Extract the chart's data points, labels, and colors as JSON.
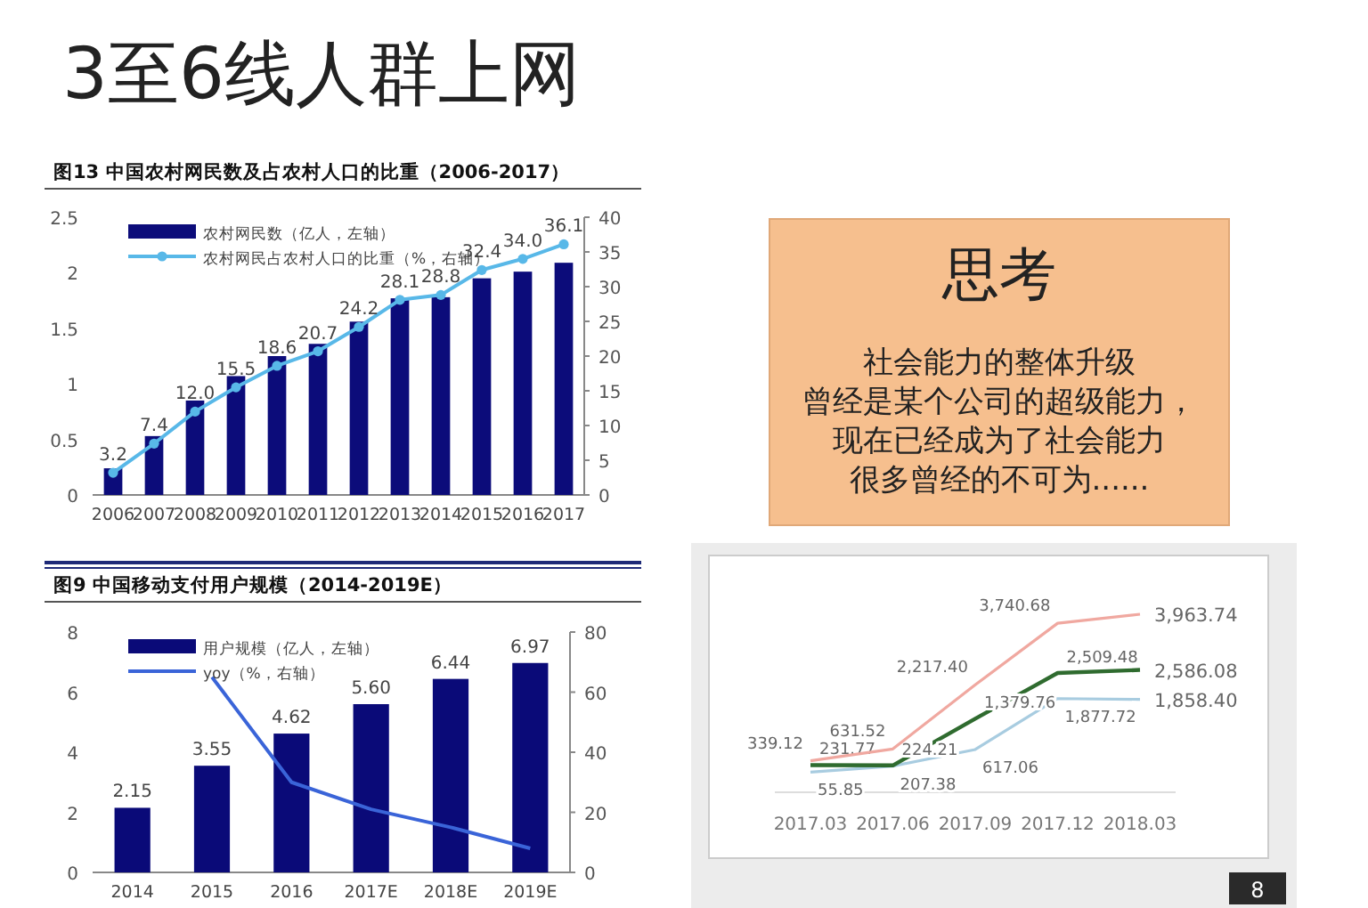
{
  "chart_data": [
    {
      "type": "other",
      "title": "3至6线人群上网"
    },
    {
      "type": "bar",
      "title": "图13 中国农村网民数及占农村人口的比重（2006-2017）",
      "categories": [
        "2006",
        "2007",
        "2008",
        "2009",
        "2010",
        "2011",
        "2012",
        "2013",
        "2014",
        "2015",
        "2016",
        "2017"
      ],
      "series": [
        {
          "name": "农村网民数（亿人，左轴）",
          "color": "#0c0c7a",
          "values": [
            0.24,
            0.53,
            0.85,
            1.07,
            1.25,
            1.36,
            1.56,
            1.77,
            1.78,
            1.95,
            2.01,
            2.09
          ]
        },
        {
          "type": "line",
          "axis": "y2",
          "marker": "circle",
          "name": "农村网民占农村人口的比重（%，右轴）",
          "color": "#58b8e8",
          "values": [
            3.2,
            7.4,
            12.0,
            15.5,
            18.6,
            20.7,
            24.2,
            28.1,
            28.8,
            32.4,
            34.0,
            36.1
          ],
          "value_labels": [
            "3.2",
            "7.4",
            "12.0",
            "15.5",
            "18.6",
            "20.7",
            "24.2",
            "28.1",
            "28.8",
            "32.4",
            "34.0",
            "36.1"
          ]
        }
      ],
      "ylim": [
        0,
        2.5
      ],
      "yticks": [
        0,
        0.5,
        1,
        1.5,
        2,
        2.5
      ],
      "y2lim": [
        0,
        40
      ],
      "y2ticks": [
        0,
        5,
        10,
        15,
        20,
        25,
        30,
        35,
        40
      ],
      "legend": "top"
    },
    {
      "type": "other",
      "title": "思考",
      "annotations": [
        "社会能力的整体升级",
        "曾经是某个公司的超级能力，",
        "现在已经成为了社会能力",
        "很多曾经的不可为......"
      ]
    },
    {
      "type": "bar",
      "title": "图9  中国移动支付用户规模（2014-2019E）",
      "categories": [
        "2014",
        "2015",
        "2016",
        "2017E",
        "2018E",
        "2019E"
      ],
      "series": [
        {
          "name": "用户规模（亿人，左轴）",
          "color": "#0a0a78",
          "values": [
            2.15,
            3.55,
            4.62,
            5.6,
            6.44,
            6.97
          ],
          "value_labels": [
            "2.15",
            "3.55",
            "4.62",
            "5.60",
            "6.44",
            "6.97"
          ]
        },
        {
          "type": "line",
          "axis": "y2",
          "name": "yoy（%，右轴）",
          "color": "#3a64d8",
          "values": [
            null,
            65,
            30,
            21,
            15,
            8
          ]
        }
      ],
      "ylim": [
        0,
        8
      ],
      "yticks": [
        0,
        2,
        4,
        6,
        8
      ],
      "y2lim": [
        0,
        80
      ],
      "y2ticks": [
        0,
        20,
        40,
        60,
        80
      ],
      "legend": "top"
    },
    {
      "type": "line",
      "categories": [
        "2017.03",
        "2017.06",
        "2017.09",
        "2017.12",
        "2018.03"
      ],
      "series": [
        {
          "color": "#a8cce0",
          "values": [
            55.85,
            207.38,
            617.06,
            1877.72,
            1858.4
          ],
          "value_labels": [
            "55.85",
            "207.38",
            "617.06",
            "1,877.72",
            "1,858.40"
          ]
        },
        {
          "color": "#2f6b2f",
          "values": [
            231.77,
            224.21,
            1379.76,
            2509.48,
            2586.08
          ],
          "value_labels": [
            "231.77",
            "224.21",
            "1,379.76",
            "2,509.48",
            "2,586.08"
          ]
        },
        {
          "color": "#f0a8a0",
          "values": [
            339.12,
            631.52,
            2217.4,
            3740.68,
            3963.74
          ],
          "value_labels": [
            "339.12",
            "631.52",
            "2,217.40",
            "3,740.68",
            "3,963.74"
          ]
        }
      ],
      "annotations": [
        "8"
      ]
    }
  ]
}
